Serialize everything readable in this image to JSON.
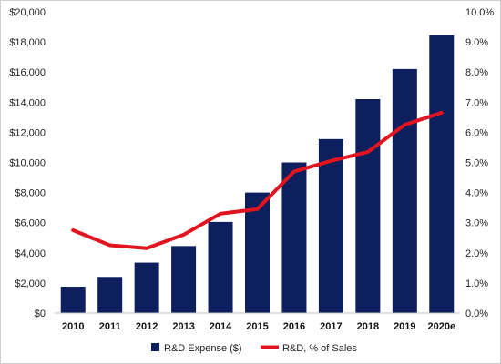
{
  "chart_data": {
    "type": "bar",
    "title": "",
    "categories": [
      "2010",
      "2011",
      "2012",
      "2013",
      "2014",
      "2015",
      "2016",
      "2017",
      "2018",
      "2019",
      "2020e"
    ],
    "series": [
      {
        "name": "R&D Expense ($)",
        "type": "bar",
        "axis": "left",
        "color": "#0d1f5c",
        "values": [
          1750,
          2400,
          3350,
          4450,
          6050,
          8000,
          10000,
          11550,
          14200,
          16200,
          18450
        ]
      },
      {
        "name": "R&D, % of Sales",
        "type": "line",
        "axis": "right",
        "color": "#e0151f",
        "values": [
          2.75,
          2.25,
          2.15,
          2.6,
          3.3,
          3.45,
          4.7,
          5.05,
          5.35,
          6.25,
          6.65
        ]
      }
    ],
    "y_left": {
      "min": 0,
      "max": 20000,
      "ticks": [
        0,
        2000,
        4000,
        6000,
        8000,
        10000,
        12000,
        14000,
        16000,
        18000,
        20000
      ],
      "tick_labels": [
        "$0",
        "$2,000",
        "$4,000",
        "$6,000",
        "$8,000",
        "$10,000",
        "$12,000",
        "$14,000",
        "$16,000",
        "$18,000",
        "$20,000"
      ]
    },
    "y_right": {
      "min": 0,
      "max": 10,
      "ticks": [
        0,
        1,
        2,
        3,
        4,
        5,
        6,
        7,
        8,
        9,
        10
      ],
      "tick_labels": [
        "0.0%",
        "1.0%",
        "2.0%",
        "3.0%",
        "4.0%",
        "5.0%",
        "6.0%",
        "7.0%",
        "8.0%",
        "9.0%",
        "10.0%"
      ]
    },
    "grid": false,
    "legend_position": "bottom"
  }
}
